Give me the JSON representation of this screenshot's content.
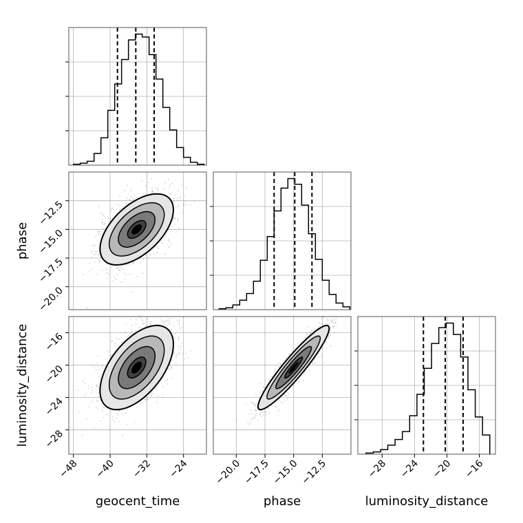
{
  "chart_data": {
    "type": "corner",
    "grid": true,
    "parameters": [
      "geocent_time",
      "phase",
      "luminosity_distance"
    ],
    "axes": {
      "geocent_time": {
        "range": [
          -49,
          -19
        ],
        "ticks": [
          -48,
          -40,
          -32,
          -24
        ],
        "tick_labels": [
          "−48",
          "−40",
          "−32",
          "−24"
        ]
      },
      "phase": {
        "range": [
          -22,
          -10
        ],
        "ticks": [
          -20.0,
          -17.5,
          -15.0,
          -12.5
        ],
        "tick_labels": [
          "−20.0",
          "−17.5",
          "−15.0",
          "−12.5"
        ]
      },
      "luminosity_distance": {
        "range": [
          -31,
          -14
        ],
        "ticks": [
          -28,
          -24,
          -20,
          -16
        ],
        "tick_labels": [
          "−28",
          "−24",
          "−20",
          "−16"
        ]
      }
    },
    "histograms": [
      {
        "parameter": "geocent_time",
        "bin_edges": [
          -48.0,
          -46.5,
          -45.0,
          -43.5,
          -42.0,
          -40.5,
          -39.0,
          -37.5,
          -36.0,
          -34.5,
          -33.0,
          -31.5,
          -30.0,
          -28.5,
          -27.0,
          -25.5,
          -24.0,
          -22.5,
          -21.0,
          -19.5
        ],
        "counts": [
          1,
          2,
          4,
          12,
          28,
          56,
          83,
          108,
          128,
          134,
          131,
          113,
          88,
          59,
          36,
          18,
          8,
          3,
          1
        ],
        "quantiles": [
          -38.4,
          -34.4,
          -30.4
        ]
      },
      {
        "parameter": "phase",
        "bin_edges": [
          -21.5,
          -20.9,
          -20.3,
          -19.7,
          -19.1,
          -18.5,
          -17.9,
          -17.3,
          -16.7,
          -16.1,
          -15.5,
          -14.9,
          -14.3,
          -13.7,
          -13.1,
          -12.5,
          -11.9,
          -11.3,
          -10.7,
          -10.1
        ],
        "counts": [
          1,
          2,
          5,
          10,
          17,
          30,
          52,
          77,
          104,
          128,
          138,
          132,
          110,
          80,
          53,
          31,
          16,
          7,
          3
        ],
        "quantiles": [
          -16.7,
          -14.9,
          -13.4
        ]
      },
      {
        "parameter": "luminosity_distance",
        "bin_edges": [
          -30.0,
          -29.1,
          -28.2,
          -27.3,
          -26.4,
          -25.5,
          -24.6,
          -23.7,
          -22.8,
          -21.9,
          -21.0,
          -20.1,
          -19.2,
          -18.3,
          -17.4,
          -16.5,
          -15.6,
          -14.7
        ],
        "counts": [
          1,
          2,
          4,
          8,
          13,
          20,
          34,
          53,
          76,
          98,
          112,
          116,
          106,
          86,
          57,
          33,
          17
        ],
        "quantiles": [
          -22.9,
          -20.2,
          -18.0
        ]
      }
    ],
    "joint": [
      {
        "x": "geocent_time",
        "y": "phase",
        "x_mean": -34.2,
        "y_mean": -15.0,
        "x_sd": 4.0,
        "y_sd": 1.55,
        "corr": 0.55
      },
      {
        "x": "geocent_time",
        "y": "luminosity_distance",
        "x_mean": -34.2,
        "y_mean": -20.3,
        "x_sd": 4.0,
        "y_sd": 2.6,
        "corr": 0.55
      },
      {
        "x": "phase",
        "y": "luminosity_distance",
        "x_mean": -15.0,
        "y_mean": -20.3,
        "x_sd": 1.55,
        "y_sd": 2.6,
        "corr": 0.93
      }
    ],
    "contour_sigma_levels": [
      0.5,
      1.0,
      1.5,
      2.0
    ],
    "colors": {
      "line": "#000000",
      "grid": "#b0b0b0",
      "points": "#7f7f7f",
      "background": "#ffffff"
    }
  }
}
